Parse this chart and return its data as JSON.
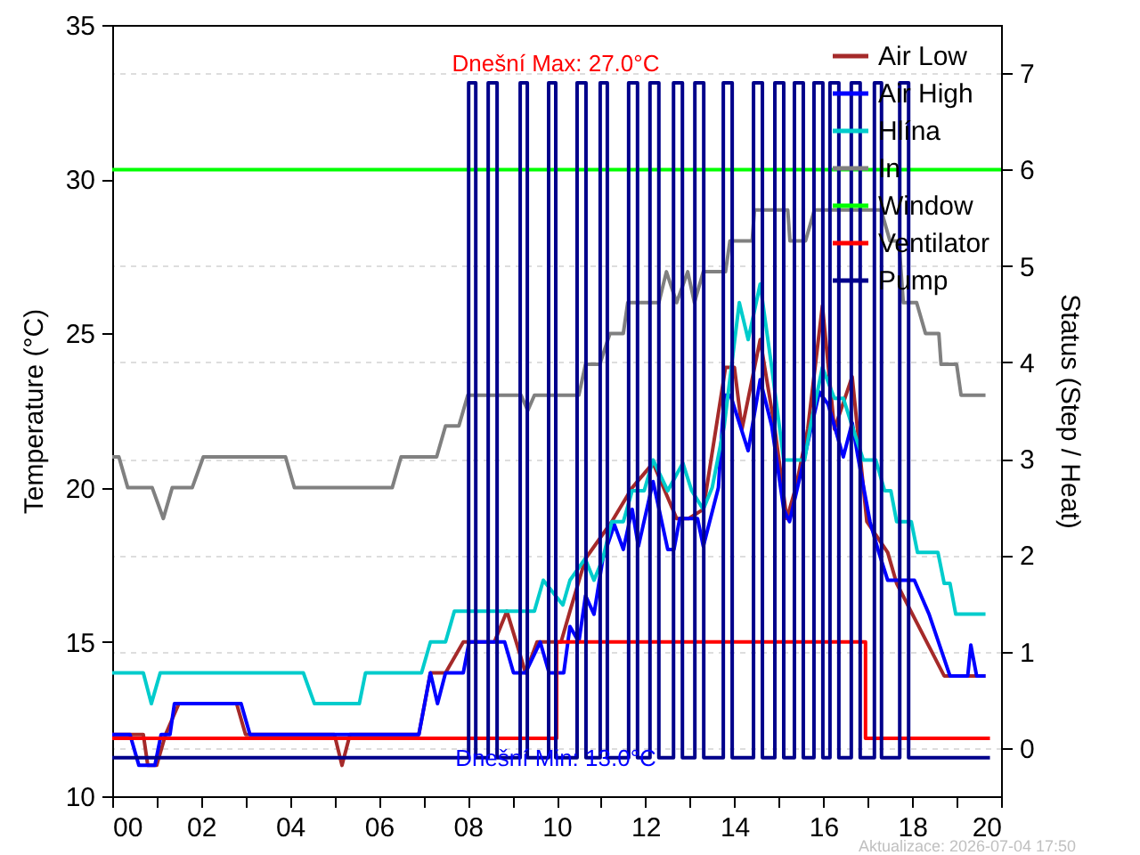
{
  "chart_data": {
    "type": "line",
    "ylabel": "Temperature (°C)",
    "y2label": "Status (Step / Heat)",
    "xlim": [
      0,
      20
    ],
    "xticks": [
      {
        "value": 0,
        "label": "00"
      },
      {
        "value": 1,
        "label": null
      },
      {
        "value": 2,
        "label": "02"
      },
      {
        "value": 3,
        "label": null
      },
      {
        "value": 4,
        "label": "04"
      },
      {
        "value": 5,
        "label": null
      },
      {
        "value": 6,
        "label": "06"
      },
      {
        "value": 7,
        "label": null
      },
      {
        "value": 8,
        "label": "08"
      },
      {
        "value": 9,
        "label": null
      },
      {
        "value": 10,
        "label": "10"
      },
      {
        "value": 11,
        "label": null
      },
      {
        "value": 12,
        "label": "12"
      },
      {
        "value": 13,
        "label": null
      },
      {
        "value": 14,
        "label": "14"
      },
      {
        "value": 15,
        "label": null
      },
      {
        "value": 16,
        "label": "16"
      },
      {
        "value": 17,
        "label": null
      },
      {
        "value": 18,
        "label": "18"
      },
      {
        "value": 19,
        "label": null
      },
      {
        "value": 20,
        "label": "20"
      }
    ],
    "ylim": [
      10,
      35
    ],
    "yticks": [
      10,
      15,
      20,
      25,
      30,
      35
    ],
    "y2lim": [
      -0.5,
      7.5
    ],
    "y2ticks": [
      0,
      1,
      2,
      3,
      4,
      5,
      6,
      7
    ],
    "grid": "y",
    "legend": "top right",
    "annotations": [
      "Dnešní Max: 27.0°C",
      "Dnešní Min: 13.0°C",
      "Aktualizace: 2026-07-04 17:50"
    ],
    "series": [
      {
        "name": "Air Low",
        "color": "#a52a2a",
        "x": [
          0,
          0.7,
          0.8,
          1.0,
          1.2,
          1.5,
          2.8,
          3.0,
          5.0,
          5.17,
          5.35,
          6.9,
          7.16,
          7.5,
          7.9,
          8.6,
          8.88,
          9.3,
          9.56,
          10.1,
          10.3,
          10.65,
          11.24,
          11.7,
          12.17,
          12.7,
          12.97,
          13.3,
          13.8,
          14.0,
          14.17,
          14.58,
          14.91,
          15.18,
          15.38,
          15.65,
          15.98,
          16.25,
          16.65,
          16.98,
          17.45,
          17.65,
          18.72,
          19.65
        ],
        "values": [
          12,
          12,
          11,
          11,
          12,
          13,
          13,
          12,
          12,
          11,
          12,
          12,
          14,
          14,
          15,
          15,
          16,
          14,
          15,
          15,
          16,
          17.7,
          18.9,
          20,
          20.8,
          19,
          19,
          19.3,
          23.9,
          23.9,
          21.9,
          24.8,
          21.9,
          19,
          20,
          21.9,
          25.9,
          21.9,
          23.6,
          18.9,
          17.9,
          16.9,
          13.9,
          13.9
        ]
      },
      {
        "name": "Air High",
        "color": "#0000ff",
        "x": [
          0,
          0.4,
          0.6,
          0.96,
          1.1,
          1.3,
          1.4,
          2.9,
          3.1,
          6.9,
          7.16,
          7.32,
          7.5,
          7.9,
          8.03,
          8.83,
          9.03,
          9.3,
          9.63,
          9.83,
          10.16,
          10.3,
          10.5,
          10.65,
          10.84,
          11.04,
          11.3,
          11.5,
          11.7,
          11.84,
          12.17,
          12.5,
          12.64,
          12.77,
          13.17,
          13.3,
          13.64,
          13.77,
          13.91,
          14.31,
          14.58,
          14.84,
          15.11,
          15.24,
          15.58,
          15.91,
          16.11,
          16.45,
          16.65,
          16.78,
          17.05,
          17.25,
          17.45,
          18.05,
          18.38,
          18.85,
          19.25,
          19.32,
          19.45,
          19.65
        ],
        "values": [
          12,
          12,
          11,
          11,
          12,
          12,
          13,
          13,
          12,
          12,
          14,
          13,
          14,
          14,
          15,
          15,
          14,
          14,
          15,
          14,
          14,
          15.5,
          15,
          16.5,
          15.9,
          17.7,
          18.8,
          18,
          19.3,
          18.1,
          20.2,
          18,
          18,
          19,
          19,
          18.1,
          20,
          23,
          23,
          21.2,
          23.5,
          22,
          19.3,
          18.9,
          21,
          23.1,
          22.7,
          21,
          22.1,
          21,
          18.9,
          17.9,
          17,
          17,
          15.9,
          13.9,
          13.9,
          14.9,
          13.9,
          13.9
        ]
      },
      {
        "name": "Hlína",
        "color": "#00cccc",
        "x": [
          0,
          0.7,
          0.88,
          1.08,
          4.3,
          4.55,
          5.56,
          5.7,
          6.96,
          7.16,
          7.5,
          7.7,
          9.5,
          9.7,
          10.14,
          10.3,
          10.64,
          10.84,
          11.04,
          11.24,
          11.5,
          11.7,
          11.97,
          12.17,
          12.5,
          12.84,
          13.04,
          13.3,
          13.5,
          13.77,
          14.11,
          14.31,
          14.58,
          14.84,
          15.11,
          15.58,
          15.71,
          15.98,
          16.25,
          16.45,
          16.65,
          16.9,
          17.18,
          17.38,
          17.52,
          17.65,
          17.98,
          18.12,
          18.58,
          18.72,
          18.85,
          18.98,
          19.65
        ],
        "values": [
          14,
          14,
          13,
          14,
          14,
          13,
          13,
          14,
          14,
          15,
          15,
          16,
          16,
          17,
          16.2,
          17,
          17.7,
          17,
          17.7,
          18.9,
          18.9,
          19.9,
          19.9,
          20.9,
          19.9,
          20.8,
          19.9,
          19.3,
          20,
          22,
          26,
          24.8,
          26.6,
          23.9,
          20.9,
          20.9,
          22,
          23.9,
          22.9,
          22.9,
          22,
          20.9,
          20.9,
          19.9,
          19.9,
          18.9,
          18.9,
          17.9,
          17.9,
          16.9,
          16.9,
          15.9,
          15.9
        ]
      },
      {
        "name": "In",
        "color": "#808080",
        "x": [
          0,
          0.15,
          0.35,
          0.9,
          1.15,
          1.35,
          1.8,
          2.05,
          3.9,
          4.1,
          6.3,
          6.5,
          7.3,
          7.5,
          7.8,
          8.0,
          9.2,
          9.35,
          9.5,
          10.5,
          10.65,
          10.97,
          11.2,
          11.5,
          11.6,
          12.3,
          12.47,
          12.7,
          12.95,
          13.1,
          13.3,
          13.8,
          13.9,
          14.4,
          14.45,
          15.2,
          15.25,
          15.6,
          15.8,
          17.3,
          17.5,
          17.7,
          17.8,
          18.1,
          18.3,
          18.6,
          18.65,
          19.0,
          19.1,
          19.65
        ],
        "values": [
          21,
          21,
          20,
          20,
          19,
          20,
          20,
          21,
          21,
          20,
          20,
          21,
          21,
          22,
          22,
          23,
          23,
          22.5,
          23,
          23,
          24,
          24,
          25,
          25,
          26,
          26,
          27,
          26,
          27,
          26,
          27,
          27,
          28,
          28,
          29,
          29,
          28,
          28,
          29,
          29,
          28,
          28,
          26,
          26,
          25,
          25,
          24,
          24,
          23,
          23
        ]
      },
      {
        "name": "Window",
        "color": "#00ff00",
        "axis": "y2",
        "x": [
          0,
          20
        ],
        "values": [
          6,
          6
        ]
      },
      {
        "name": "Ventilator",
        "color": "#ff0000",
        "axis": "y2",
        "type": "step",
        "x": [
          0,
          10,
          16.95,
          19.75
        ],
        "values": [
          0.1,
          1.1,
          0.1,
          0.1
        ]
      },
      {
        "name": "Pump",
        "color": "#00008b",
        "axis": "y2",
        "type": "step",
        "x": [
          0,
          8.02,
          8.18,
          8.46,
          8.66,
          9.18,
          9.34,
          9.82,
          9.98,
          10.46,
          10.66,
          10.98,
          11.14,
          11.62,
          11.82,
          12.1,
          12.3,
          12.63,
          12.83,
          13.11,
          13.31,
          13.75,
          13.95,
          14.43,
          14.63,
          14.91,
          15.11,
          15.35,
          15.55,
          15.79,
          15.99,
          16.15,
          16.35,
          16.63,
          16.83,
          17.15,
          17.31,
          17.72,
          17.92,
          19.75
        ],
        "values": [
          -0.1,
          6.9,
          -0.1,
          6.9,
          -0.1,
          6.9,
          -0.1,
          6.9,
          -0.1,
          6.9,
          -0.1,
          6.9,
          -0.1,
          6.9,
          -0.1,
          6.9,
          -0.1,
          6.9,
          -0.1,
          6.9,
          -0.1,
          6.9,
          -0.1,
          6.9,
          -0.1,
          6.9,
          -0.1,
          6.9,
          -0.1,
          6.9,
          -0.1,
          6.9,
          -0.1,
          6.9,
          -0.1,
          6.9,
          -0.1,
          6.9,
          -0.1,
          -0.1
        ]
      }
    ]
  }
}
